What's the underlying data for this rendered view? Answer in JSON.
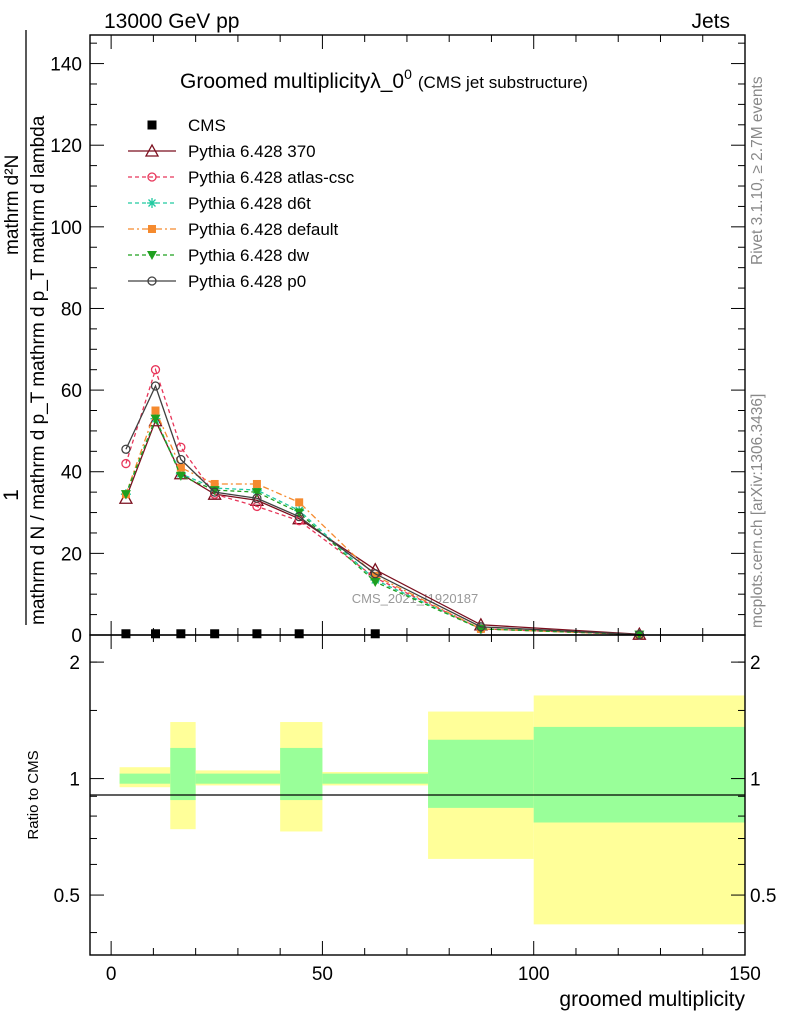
{
  "header": {
    "left": "13000 GeV pp",
    "right": "Jets",
    "side_top": "Rivet 3.1.10, ≥ 2.7M events",
    "side_bottom": "mcplots.cern.ch [arXiv:1306.3436]"
  },
  "chart_data": {
    "type": "line",
    "title": "Groomed multiplicityλ_0",
    "title_sup": "0",
    "subtitle": "(CMS jet substructure)",
    "watermark": "CMS_2021_I1920187",
    "xlabel": "groomed multiplicity",
    "ylabel_main_numerator": "1",
    "ylabel_main_denominator": "mathrm d N / mathrm d p_T mathrm d p_T mathrm d lambda",
    "ylabel_main_right": "mathrm d²N",
    "ylabel_ratio": "Ratio to CMS",
    "xlim": [
      -5,
      150
    ],
    "ylim": [
      0,
      147
    ],
    "ratio_ylim": [
      0.35,
      2.35
    ],
    "x_ticks": [
      0,
      50,
      100,
      150
    ],
    "y_ticks": [
      0,
      20,
      40,
      60,
      80,
      100,
      120,
      140
    ],
    "ratio_ticks": [
      0.5,
      1,
      2
    ],
    "bins": [
      [
        2,
        14
      ],
      [
        14,
        20
      ],
      [
        20,
        40
      ],
      [
        40,
        50
      ],
      [
        50,
        75
      ],
      [
        75,
        100
      ],
      [
        100,
        150
      ]
    ],
    "legend_position": "top-left",
    "cms": {
      "name": "CMS",
      "x": [
        3.5,
        10.5,
        16.5,
        24.5,
        34.5,
        44.5,
        62.5
      ],
      "y": [
        0.3,
        0.3,
        0.3,
        0.3,
        0.3,
        0.3,
        0.3
      ]
    },
    "series": [
      {
        "name": "Pythia 6.428 370",
        "color": "#7b0f1e",
        "dash": "",
        "marker": "triangle-open",
        "x": [
          3.5,
          10.5,
          16.5,
          24.5,
          34.5,
          44.5,
          62.5,
          87.5,
          125
        ],
        "y": [
          33.5,
          52.5,
          39.5,
          34.5,
          33,
          28.5,
          16,
          2.5,
          0.2
        ]
      },
      {
        "name": "Pythia 6.428 atlas-csc",
        "color": "#e8365a",
        "dash": "4,3",
        "marker": "circle-open",
        "x": [
          3.5,
          10.5,
          16.5,
          24.5,
          34.5,
          44.5,
          62.5,
          87.5,
          125
        ],
        "y": [
          42,
          65,
          46,
          34.5,
          31.5,
          28,
          14,
          1.5,
          0.1
        ]
      },
      {
        "name": "Pythia 6.428 d6t",
        "color": "#20c9a0",
        "dash": "4,3",
        "marker": "star",
        "x": [
          3.5,
          10.5,
          16.5,
          24.5,
          34.5,
          44.5,
          62.5,
          87.5,
          125
        ],
        "y": [
          34.5,
          53,
          39.5,
          36,
          35.5,
          30.5,
          13.5,
          1.5,
          0.1
        ]
      },
      {
        "name": "Pythia 6.428 default",
        "color": "#f58a2e",
        "dash": "6,3,2,3",
        "marker": "square",
        "x": [
          3.5,
          10.5,
          16.5,
          24.5,
          34.5,
          44.5,
          62.5,
          87.5,
          125
        ],
        "y": [
          34.5,
          55,
          41,
          37,
          37,
          32.5,
          14.5,
          1.5,
          0.1
        ]
      },
      {
        "name": "Pythia 6.428 dw",
        "color": "#1fa01f",
        "dash": "4,3",
        "marker": "triangle-down",
        "x": [
          3.5,
          10.5,
          16.5,
          24.5,
          34.5,
          44.5,
          62.5,
          87.5,
          125
        ],
        "y": [
          34.5,
          53,
          39,
          35.5,
          35,
          30,
          13,
          1.5,
          0.1
        ]
      },
      {
        "name": "Pythia 6.428 p0",
        "color": "#404040",
        "dash": "",
        "marker": "circle-open",
        "x": [
          3.5,
          10.5,
          16.5,
          24.5,
          34.5,
          44.5,
          62.5,
          87.5,
          125
        ],
        "y": [
          45.5,
          61,
          43,
          35,
          33.5,
          29,
          15,
          2,
          0.1
        ]
      }
    ],
    "ratio_bands": {
      "stat_color": "#99ff99",
      "total_color": "#ffff99",
      "stat": [
        [
          0.97,
          1.03
        ],
        [
          0.88,
          1.2
        ],
        [
          0.97,
          1.03
        ],
        [
          0.88,
          1.2
        ],
        [
          0.97,
          1.03
        ],
        [
          0.84,
          1.26
        ],
        [
          0.77,
          1.36
        ]
      ],
      "total": [
        [
          0.95,
          1.07
        ],
        [
          0.74,
          1.4
        ],
        [
          0.96,
          1.05
        ],
        [
          0.73,
          1.4
        ],
        [
          0.96,
          1.04
        ],
        [
          0.62,
          1.49
        ],
        [
          0.42,
          1.64
        ]
      ]
    }
  }
}
